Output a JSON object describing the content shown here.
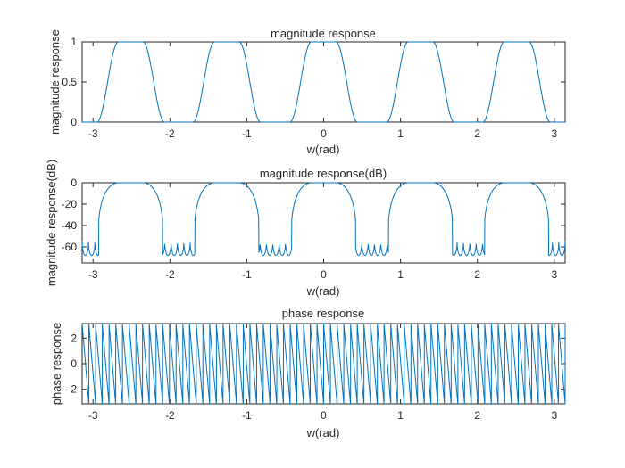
{
  "chart_data": [
    {
      "type": "line",
      "id": "mag",
      "title": "magnitude response",
      "xlabel": "w(rad)",
      "ylabel": "magnitude response",
      "xlim": [
        -3.14159,
        3.14159
      ],
      "ylim": [
        0,
        1
      ],
      "xticks": [
        -3,
        -2,
        -1,
        0,
        1,
        2,
        3
      ],
      "yticks": [
        0,
        0.5,
        1
      ],
      "ytick_labels": [
        "0",
        "0.5",
        "1"
      ],
      "passband_centers": [
        -2.51,
        -1.26,
        0,
        1.26,
        2.51
      ],
      "passband_flat_halfwidth": 0.16,
      "passband_edge_halfwidth": 0.44,
      "series_color": "#0072BD",
      "grid": false
    },
    {
      "type": "line",
      "id": "db",
      "title": "magnitude response(dB)",
      "xlabel": "w(rad)",
      "ylabel": "magnitude response(dB)",
      "xlim": [
        -3.14159,
        3.14159
      ],
      "ylim": [
        -75,
        0
      ],
      "xticks": [
        -3,
        -2,
        -1,
        0,
        1,
        2,
        3
      ],
      "yticks": [
        -60,
        -40,
        -20,
        0
      ],
      "ytick_labels": [
        "-60",
        "-40",
        "-20",
        "0"
      ],
      "passband_centers": [
        -2.51,
        -1.26,
        0,
        1.26,
        2.51
      ],
      "stopband_level_db": -60,
      "series_color": "#0072BD",
      "grid": false
    },
    {
      "type": "line",
      "id": "phase",
      "title": "phase response",
      "xlabel": "w(rad)",
      "ylabel": "phase response",
      "xlim": [
        -3.14159,
        3.14159
      ],
      "ylim": [
        -3.14159,
        3.14159
      ],
      "xticks": [
        -3,
        -2,
        -1,
        0,
        1,
        2,
        3
      ],
      "yticks": [
        -2,
        0,
        2
      ],
      "ytick_labels": [
        "-2",
        "0",
        "2"
      ],
      "wraps_per_band": 6,
      "series_color": "#0072BD",
      "grid": false
    }
  ]
}
